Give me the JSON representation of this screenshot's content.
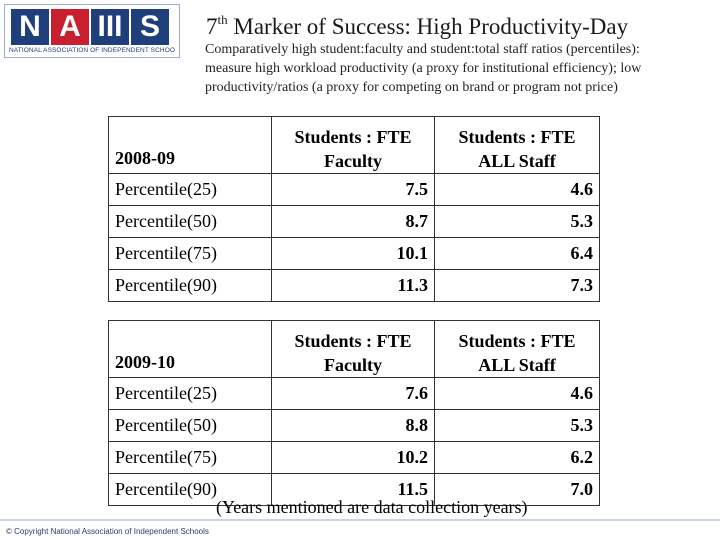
{
  "logo": {
    "blocks": [
      "N",
      "A",
      "III",
      "S"
    ],
    "tagline": "NATIONAL ASSOCIATION OF INDEPENDENT SCHOOLS"
  },
  "header": {
    "title_sup": "th",
    "title_num": "7",
    "title_rest": "Marker of Success: High Productivity-Day",
    "subtitle_lines": [
      "Comparatively high student:faculty and student:total staff ratios (percentiles):",
      "measure high workload productivity (a proxy for institutional efficiency); low",
      "productivity/ratios (a proxy for competing on brand or program not price)"
    ]
  },
  "tables": [
    {
      "year": "2008-09",
      "col1": [
        "Students : FTE",
        "Faculty"
      ],
      "col2": [
        "Students : FTE",
        "ALL Staff"
      ],
      "rows": [
        {
          "label": "Percentile(25)",
          "v1": "7.5",
          "v2": "4.6"
        },
        {
          "label": "Percentile(50)",
          "v1": "8.7",
          "v2": "5.3"
        },
        {
          "label": "Percentile(75)",
          "v1": "10.1",
          "v2": "6.4"
        },
        {
          "label": "Percentile(90)",
          "v1": "11.3",
          "v2": "7.3"
        }
      ]
    },
    {
      "year": "2009-10",
      "col1": [
        "Students : FTE",
        "Faculty"
      ],
      "col2": [
        "Students : FTE",
        "ALL Staff"
      ],
      "rows": [
        {
          "label": "Percentile(25)",
          "v1": "7.6",
          "v2": "4.6"
        },
        {
          "label": "Percentile(50)",
          "v1": "8.8",
          "v2": "5.3"
        },
        {
          "label": "Percentile(75)",
          "v1": "10.2",
          "v2": "6.2"
        },
        {
          "label": "Percentile(90)",
          "v1": "11.5",
          "v2": "7.0"
        }
      ]
    }
  ],
  "footnote": "(Years mentioned are data collection years)",
  "copyright": "© Copyright National Association of Independent Schools",
  "colors": {
    "logo_blue": "#1f3f7a",
    "logo_red": "#c8202f"
  }
}
